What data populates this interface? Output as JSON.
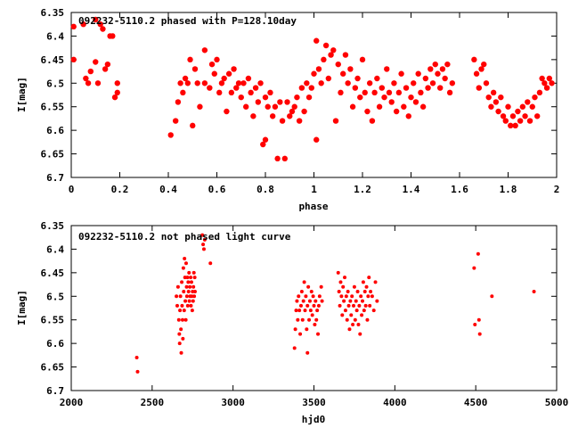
{
  "chart_data": [
    {
      "type": "scatter",
      "title": "092232-5110.2 phased with P=128.10day",
      "xlabel": "phase",
      "ylabel": "I[mag]",
      "xlim": [
        0,
        2
      ],
      "ylim": [
        6.35,
        6.7
      ],
      "y_inverted": true,
      "grid": false,
      "x_ticks": [
        "0",
        "0.2",
        "0.4",
        "0.6",
        "0.8",
        "1",
        "1.2",
        "1.4",
        "1.6",
        "1.8",
        "2"
      ],
      "y_ticks": [
        "6.35",
        "6.4",
        "6.45",
        "6.5",
        "6.55",
        "6.6",
        "6.65",
        "6.7"
      ],
      "marker": "filled-circle-large",
      "color": "#ff0000",
      "points": [
        [
          0.01,
          6.38
        ],
        [
          0.01,
          6.45
        ],
        [
          0.05,
          6.375
        ],
        [
          0.06,
          6.49
        ],
        [
          0.07,
          6.5
        ],
        [
          0.08,
          6.475
        ],
        [
          0.1,
          6.365
        ],
        [
          0.1,
          6.455
        ],
        [
          0.11,
          6.5
        ],
        [
          0.12,
          6.375
        ],
        [
          0.13,
          6.385
        ],
        [
          0.14,
          6.47
        ],
        [
          0.15,
          6.46
        ],
        [
          0.16,
          6.4
        ],
        [
          0.17,
          6.4
        ],
        [
          0.18,
          6.53
        ],
        [
          0.19,
          6.5
        ],
        [
          0.19,
          6.52
        ],
        [
          0.41,
          6.61
        ],
        [
          0.43,
          6.58
        ],
        [
          0.44,
          6.54
        ],
        [
          0.45,
          6.5
        ],
        [
          0.46,
          6.52
        ],
        [
          0.47,
          6.49
        ],
        [
          0.48,
          6.5
        ],
        [
          0.49,
          6.45
        ],
        [
          0.5,
          6.59
        ],
        [
          0.51,
          6.47
        ],
        [
          0.52,
          6.5
        ],
        [
          0.53,
          6.55
        ],
        [
          0.55,
          6.43
        ],
        [
          0.55,
          6.5
        ],
        [
          0.57,
          6.51
        ],
        [
          0.58,
          6.46
        ],
        [
          0.59,
          6.48
        ],
        [
          0.6,
          6.45
        ],
        [
          0.61,
          6.52
        ],
        [
          0.62,
          6.5
        ],
        [
          0.63,
          6.49
        ],
        [
          0.64,
          6.56
        ],
        [
          0.65,
          6.48
        ],
        [
          0.66,
          6.52
        ],
        [
          0.67,
          6.47
        ],
        [
          0.68,
          6.51
        ],
        [
          0.69,
          6.5
        ],
        [
          0.7,
          6.53
        ],
        [
          0.71,
          6.5
        ],
        [
          0.72,
          6.55
        ],
        [
          0.73,
          6.49
        ],
        [
          0.74,
          6.52
        ],
        [
          0.75,
          6.57
        ],
        [
          0.76,
          6.51
        ],
        [
          0.77,
          6.54
        ],
        [
          0.78,
          6.5
        ],
        [
          0.79,
          6.63
        ],
        [
          0.8,
          6.62
        ],
        [
          0.8,
          6.53
        ],
        [
          0.81,
          6.55
        ],
        [
          0.82,
          6.52
        ],
        [
          0.83,
          6.57
        ],
        [
          0.84,
          6.55
        ],
        [
          0.85,
          6.66
        ],
        [
          0.86,
          6.54
        ],
        [
          0.87,
          6.58
        ],
        [
          0.88,
          6.66
        ],
        [
          0.89,
          6.54
        ],
        [
          0.9,
          6.57
        ],
        [
          0.91,
          6.56
        ],
        [
          0.92,
          6.55
        ],
        [
          0.93,
          6.53
        ],
        [
          0.94,
          6.58
        ],
        [
          0.95,
          6.51
        ],
        [
          0.96,
          6.56
        ],
        [
          0.97,
          6.5
        ],
        [
          0.98,
          6.53
        ],
        [
          0.99,
          6.51
        ],
        [
          1.0,
          6.48
        ],
        [
          1.01,
          6.41
        ],
        [
          1.01,
          6.62
        ],
        [
          1.02,
          6.47
        ],
        [
          1.03,
          6.5
        ],
        [
          1.04,
          6.45
        ],
        [
          1.05,
          6.42
        ],
        [
          1.06,
          6.49
        ],
        [
          1.07,
          6.44
        ],
        [
          1.08,
          6.43
        ],
        [
          1.09,
          6.58
        ],
        [
          1.1,
          6.46
        ],
        [
          1.11,
          6.52
        ],
        [
          1.12,
          6.48
        ],
        [
          1.13,
          6.44
        ],
        [
          1.14,
          6.5
        ],
        [
          1.15,
          6.47
        ],
        [
          1.16,
          6.55
        ],
        [
          1.17,
          6.51
        ],
        [
          1.18,
          6.49
        ],
        [
          1.19,
          6.53
        ],
        [
          1.2,
          6.45
        ],
        [
          1.21,
          6.52
        ],
        [
          1.22,
          6.56
        ],
        [
          1.23,
          6.5
        ],
        [
          1.24,
          6.58
        ],
        [
          1.25,
          6.52
        ],
        [
          1.26,
          6.49
        ],
        [
          1.27,
          6.55
        ],
        [
          1.28,
          6.51
        ],
        [
          1.29,
          6.53
        ],
        [
          1.3,
          6.47
        ],
        [
          1.31,
          6.52
        ],
        [
          1.32,
          6.54
        ],
        [
          1.33,
          6.5
        ],
        [
          1.34,
          6.56
        ],
        [
          1.35,
          6.52
        ],
        [
          1.36,
          6.48
        ],
        [
          1.37,
          6.55
        ],
        [
          1.38,
          6.51
        ],
        [
          1.39,
          6.57
        ],
        [
          1.4,
          6.53
        ],
        [
          1.41,
          6.5
        ],
        [
          1.42,
          6.54
        ],
        [
          1.43,
          6.48
        ],
        [
          1.44,
          6.52
        ],
        [
          1.45,
          6.55
        ],
        [
          1.46,
          6.49
        ],
        [
          1.47,
          6.51
        ],
        [
          1.48,
          6.47
        ],
        [
          1.49,
          6.5
        ],
        [
          1.5,
          6.46
        ],
        [
          1.51,
          6.48
        ],
        [
          1.52,
          6.51
        ],
        [
          1.53,
          6.47
        ],
        [
          1.54,
          6.49
        ],
        [
          1.55,
          6.46
        ],
        [
          1.56,
          6.52
        ],
        [
          1.57,
          6.5
        ],
        [
          1.66,
          6.45
        ],
        [
          1.67,
          6.48
        ],
        [
          1.68,
          6.51
        ],
        [
          1.69,
          6.47
        ],
        [
          1.7,
          6.46
        ],
        [
          1.71,
          6.5
        ],
        [
          1.72,
          6.53
        ],
        [
          1.73,
          6.55
        ],
        [
          1.74,
          6.52
        ],
        [
          1.75,
          6.54
        ],
        [
          1.76,
          6.56
        ],
        [
          1.77,
          6.53
        ],
        [
          1.78,
          6.57
        ],
        [
          1.79,
          6.58
        ],
        [
          1.8,
          6.55
        ],
        [
          1.81,
          6.59
        ],
        [
          1.82,
          6.57
        ],
        [
          1.83,
          6.59
        ],
        [
          1.84,
          6.56
        ],
        [
          1.85,
          6.58
        ],
        [
          1.86,
          6.55
        ],
        [
          1.87,
          6.57
        ],
        [
          1.88,
          6.54
        ],
        [
          1.89,
          6.58
        ],
        [
          1.9,
          6.55
        ],
        [
          1.91,
          6.53
        ],
        [
          1.92,
          6.57
        ],
        [
          1.93,
          6.52
        ],
        [
          1.94,
          6.49
        ],
        [
          1.95,
          6.5
        ],
        [
          1.96,
          6.51
        ],
        [
          1.97,
          6.49
        ],
        [
          1.98,
          6.5
        ]
      ]
    },
    {
      "type": "scatter",
      "title": "092232-5110.2 not phased light curve",
      "xlabel": "hjd0",
      "ylabel": "I[mag]",
      "xlim": [
        2000,
        5000
      ],
      "ylim": [
        6.35,
        6.7
      ],
      "y_inverted": true,
      "grid": false,
      "x_ticks": [
        "2000",
        "2500",
        "3000",
        "3500",
        "4000",
        "4500",
        "5000"
      ],
      "y_ticks": [
        "6.35",
        "6.4",
        "6.45",
        "6.5",
        "6.55",
        "6.6",
        "6.65",
        "6.7"
      ],
      "marker": "filled-circle-small",
      "color": "#ff0000",
      "points": [
        [
          2405,
          6.63
        ],
        [
          2410,
          6.66
        ],
        [
          2650,
          6.5
        ],
        [
          2655,
          6.52
        ],
        [
          2660,
          6.48
        ],
        [
          2665,
          6.55
        ],
        [
          2668,
          6.58
        ],
        [
          2670,
          6.6
        ],
        [
          2672,
          6.53
        ],
        [
          2675,
          6.5
        ],
        [
          2678,
          6.57
        ],
        [
          2680,
          6.62
        ],
        [
          2683,
          6.47
        ],
        [
          2685,
          6.52
        ],
        [
          2688,
          6.55
        ],
        [
          2690,
          6.59
        ],
        [
          2693,
          6.44
        ],
        [
          2695,
          6.49
        ],
        [
          2698,
          6.53
        ],
        [
          2700,
          6.42
        ],
        [
          2703,
          6.46
        ],
        [
          2705,
          6.51
        ],
        [
          2708,
          6.55
        ],
        [
          2710,
          6.43
        ],
        [
          2713,
          6.48
        ],
        [
          2715,
          6.5
        ],
        [
          2718,
          6.46
        ],
        [
          2720,
          6.52
        ],
        [
          2723,
          6.47
        ],
        [
          2725,
          6.49
        ],
        [
          2728,
          6.45
        ],
        [
          2730,
          6.51
        ],
        [
          2733,
          6.48
        ],
        [
          2735,
          6.5
        ],
        [
          2738,
          6.46
        ],
        [
          2740,
          6.52
        ],
        [
          2743,
          6.47
        ],
        [
          2745,
          6.5
        ],
        [
          2748,
          6.53
        ],
        [
          2750,
          6.49
        ],
        [
          2753,
          6.51
        ],
        [
          2755,
          6.48
        ],
        [
          2758,
          6.45
        ],
        [
          2760,
          6.5
        ],
        [
          2763,
          6.46
        ],
        [
          2765,
          6.49
        ],
        [
          2810,
          6.37
        ],
        [
          2815,
          6.39
        ],
        [
          2820,
          6.4
        ],
        [
          2825,
          6.38
        ],
        [
          2860,
          6.43
        ],
        [
          3380,
          6.61
        ],
        [
          3385,
          6.57
        ],
        [
          3390,
          6.53
        ],
        [
          3395,
          6.51
        ],
        [
          3400,
          6.55
        ],
        [
          3405,
          6.5
        ],
        [
          3410,
          6.53
        ],
        [
          3415,
          6.58
        ],
        [
          3420,
          6.52
        ],
        [
          3425,
          6.49
        ],
        [
          3430,
          6.55
        ],
        [
          3435,
          6.51
        ],
        [
          3440,
          6.47
        ],
        [
          3445,
          6.53
        ],
        [
          3450,
          6.5
        ],
        [
          3455,
          6.57
        ],
        [
          3460,
          6.52
        ],
        [
          3465,
          6.48
        ],
        [
          3470,
          6.55
        ],
        [
          3475,
          6.51
        ],
        [
          3480,
          6.53
        ],
        [
          3485,
          6.49
        ],
        [
          3490,
          6.54
        ],
        [
          3495,
          6.5
        ],
        [
          3500,
          6.52
        ],
        [
          3505,
          6.56
        ],
        [
          3510,
          6.51
        ],
        [
          3515,
          6.55
        ],
        [
          3520,
          6.53
        ],
        [
          3525,
          6.58
        ],
        [
          3530,
          6.52
        ],
        [
          3535,
          6.5
        ],
        [
          3460,
          6.62
        ],
        [
          3545,
          6.48
        ],
        [
          3550,
          6.51
        ],
        [
          3650,
          6.45
        ],
        [
          3655,
          6.49
        ],
        [
          3660,
          6.52
        ],
        [
          3665,
          6.47
        ],
        [
          3670,
          6.5
        ],
        [
          3675,
          6.54
        ],
        [
          3680,
          6.48
        ],
        [
          3685,
          6.51
        ],
        [
          3690,
          6.46
        ],
        [
          3695,
          6.53
        ],
        [
          3700,
          6.5
        ],
        [
          3705,
          6.55
        ],
        [
          3710,
          6.49
        ],
        [
          3715,
          6.52
        ],
        [
          3720,
          6.57
        ],
        [
          3725,
          6.51
        ],
        [
          3730,
          6.54
        ],
        [
          3735,
          6.5
        ],
        [
          3740,
          6.56
        ],
        [
          3745,
          6.52
        ],
        [
          3750,
          6.48
        ],
        [
          3755,
          6.55
        ],
        [
          3760,
          6.51
        ],
        [
          3765,
          6.53
        ],
        [
          3770,
          6.49
        ],
        [
          3775,
          6.56
        ],
        [
          3780,
          6.52
        ],
        [
          3785,
          6.58
        ],
        [
          3790,
          6.5
        ],
        [
          3795,
          6.54
        ],
        [
          3800,
          6.51
        ],
        [
          3805,
          6.47
        ],
        [
          3810,
          6.53
        ],
        [
          3815,
          6.49
        ],
        [
          3820,
          6.52
        ],
        [
          3825,
          6.48
        ],
        [
          3830,
          6.55
        ],
        [
          3835,
          6.5
        ],
        [
          3840,
          6.46
        ],
        [
          3845,
          6.52
        ],
        [
          3850,
          6.49
        ],
        [
          3860,
          6.5
        ],
        [
          3870,
          6.53
        ],
        [
          3880,
          6.47
        ],
        [
          3890,
          6.51
        ],
        [
          4490,
          6.44
        ],
        [
          4495,
          6.56
        ],
        [
          4515,
          6.41
        ],
        [
          4520,
          6.55
        ],
        [
          4525,
          6.58
        ],
        [
          4600,
          6.5
        ],
        [
          4860,
          6.49
        ]
      ]
    }
  ]
}
